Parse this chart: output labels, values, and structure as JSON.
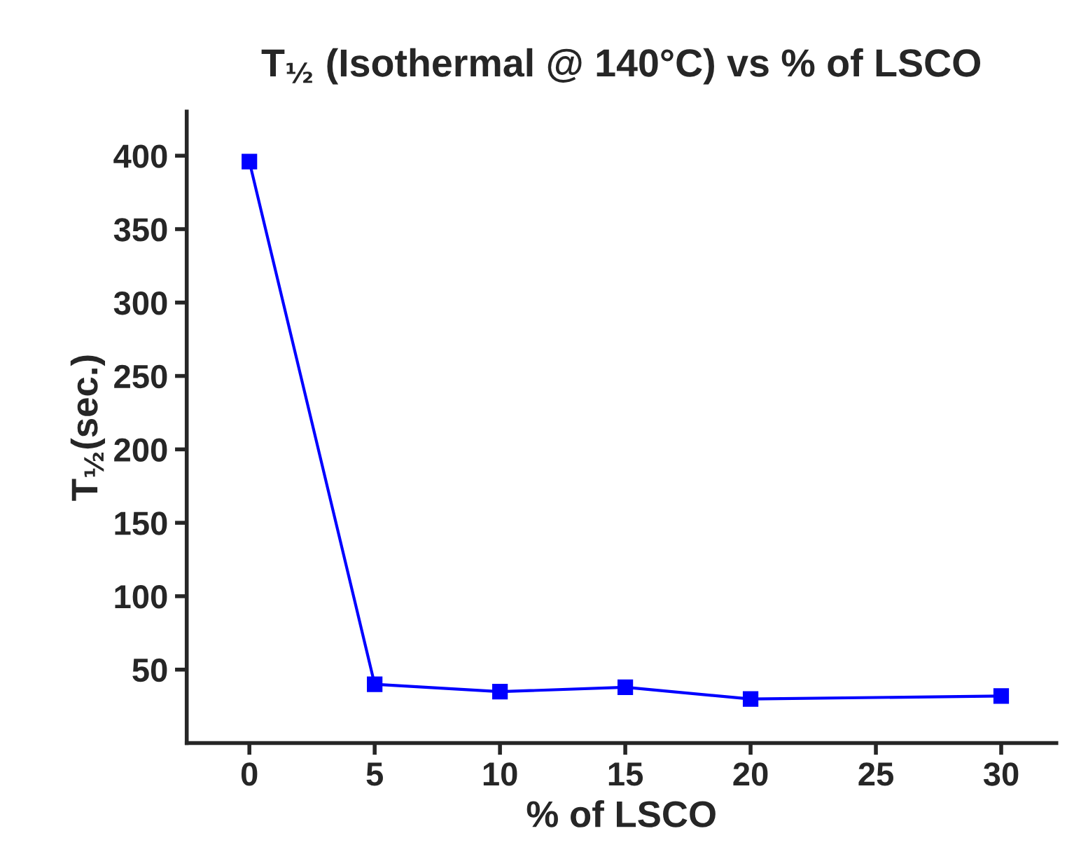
{
  "chart_data": {
    "type": "line",
    "title": "T$_{½}$ (Isothermal @ 140°C) vs % of LSCO",
    "xlabel": "% of LSCO",
    "ylabel": "T$_{½}$(sec.)",
    "x": [
      0,
      5,
      10,
      15,
      20,
      30
    ],
    "series": [
      {
        "color": "#0000ff",
        "values": [
          396,
          40,
          35,
          38,
          30,
          32
        ]
      }
    ],
    "xlim": [
      -2.5,
      32.2
    ],
    "xticks": [
      0,
      5,
      10,
      15,
      20,
      25,
      30
    ],
    "ylim": [
      0,
      430
    ],
    "yticks": [
      50,
      100,
      150,
      200,
      250,
      300,
      350,
      400
    ],
    "marker": "square",
    "line_style": "solid",
    "grid": false
  }
}
